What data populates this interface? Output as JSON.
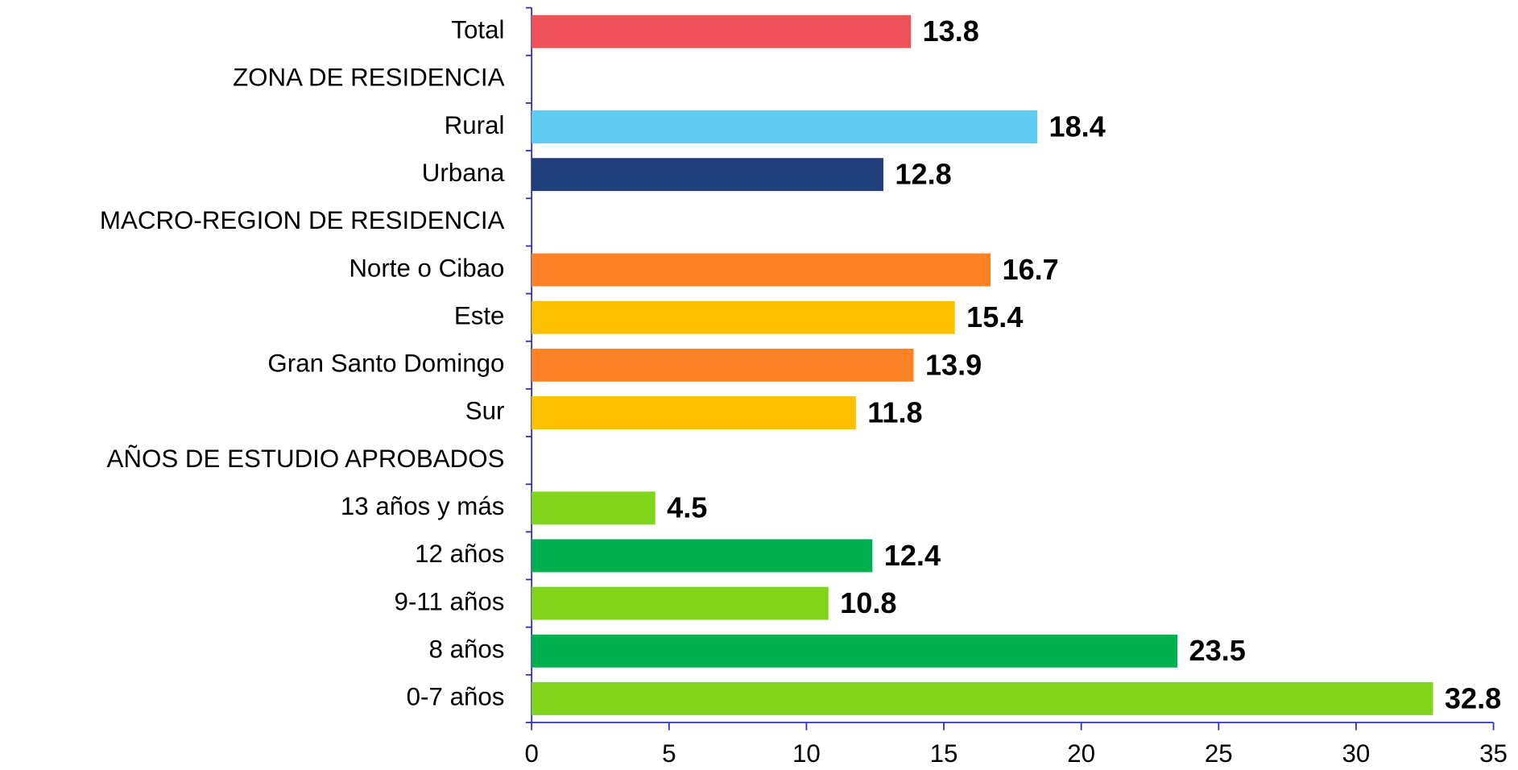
{
  "chart_data": {
    "type": "barh",
    "categories": [
      "Total",
      "ZONA DE RESIDENCIA",
      "Rural",
      "Urbana",
      "MACRO-REGION DE RESIDENCIA",
      "Norte o Cibao",
      "Este",
      "Gran Santo Domingo",
      "Sur",
      "AÑOS DE ESTUDIO APROBADOS",
      "13 años y más",
      "12 años",
      "9-11 años",
      "8 años",
      "0-7 años"
    ],
    "values": [
      13.8,
      null,
      18.4,
      12.8,
      null,
      16.7,
      15.4,
      13.9,
      11.8,
      null,
      4.5,
      12.4,
      10.8,
      23.5,
      32.8
    ],
    "colors": [
      "#f05058",
      null,
      "#60ccf4",
      "#203f7a",
      null,
      "#fd8125",
      "#fec000",
      "#fd8125",
      "#fec000",
      null,
      "#80d41c",
      "#00b04f",
      "#80d41c",
      "#00b04f",
      "#80d41c"
    ],
    "xlim": [
      0,
      35
    ],
    "xticks": [
      0,
      5,
      10,
      15,
      20,
      25,
      30,
      35
    ],
    "axis_color": "#3030c0"
  }
}
